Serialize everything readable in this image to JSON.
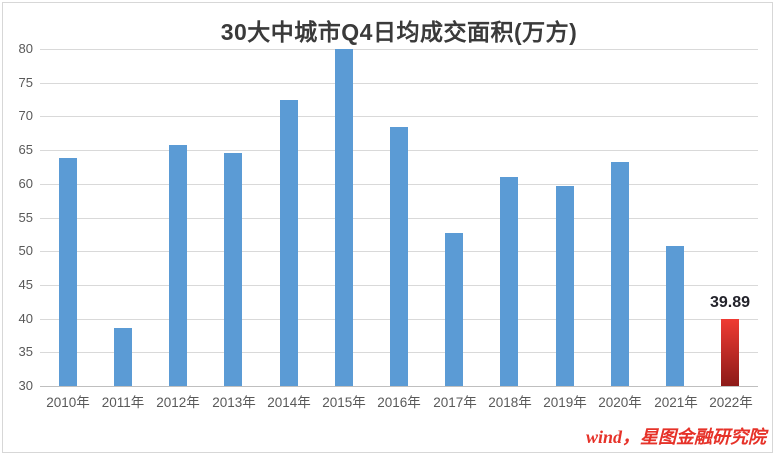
{
  "chart_data": {
    "type": "bar",
    "title": "30大中城市Q4日均成交面积(万方)",
    "categories": [
      "2010年",
      "2011年",
      "2012年",
      "2013年",
      "2014年",
      "2015年",
      "2016年",
      "2017年",
      "2018年",
      "2019年",
      "2020年",
      "2021年",
      "2022年"
    ],
    "values": [
      63.9,
      38.6,
      65.8,
      64.6,
      72.4,
      80.0,
      68.5,
      52.7,
      61.0,
      59.6,
      63.3,
      50.8,
      39.89
    ],
    "xlabel": "",
    "ylabel": "",
    "ylim": [
      30,
      80
    ],
    "ytick_step": 5,
    "grid": true,
    "legend_position": "none",
    "bar_color": "#5B9BD5",
    "gridline_color": "#D9D9D9",
    "axis_line_color": "#BFBFBF",
    "tick_label_color": "#595959",
    "title_color": "#3A3A3A",
    "highlight": {
      "index": 12,
      "gradient_top": "#EF3B33",
      "gradient_bottom": "#8C1A18",
      "label": "39.89",
      "label_color": "#23232B"
    }
  },
  "footer": {
    "source_text": "wind，星图金融研究院",
    "color": "#E63229"
  }
}
